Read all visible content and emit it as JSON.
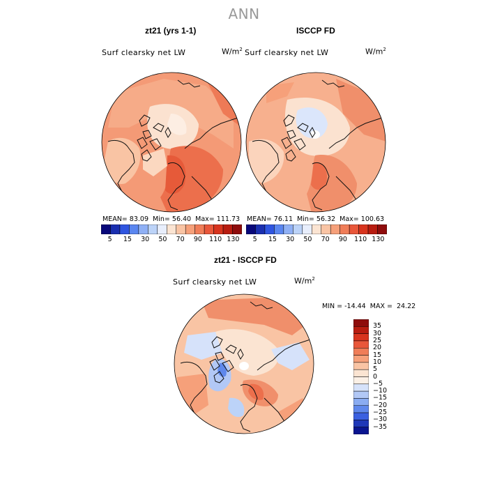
{
  "title": "ANN",
  "panels": [
    {
      "title": "zt21 (yrs 1-1)",
      "variable": "Surf clearsky net LW",
      "units_base": "W/m",
      "units_exp": "2",
      "stats": {
        "mean_label": "MEAN=",
        "mean": "83.09",
        "min_label": "Min=",
        "min": "56.40",
        "max_label": "Max=",
        "max": "111.73"
      }
    },
    {
      "title": "ISCCP FD",
      "variable": "Surf clearsky net LW",
      "units_base": "W/m",
      "units_exp": "2",
      "stats": {
        "mean_label": "MEAN=",
        "mean": "76.11",
        "min_label": "Min=",
        "min": "56.32",
        "max_label": "Max=",
        "max": "100.63"
      }
    }
  ],
  "colorbar_top": {
    "tick_labels": [
      "5",
      "15",
      "30",
      "50",
      "70",
      "90",
      "110",
      "130"
    ],
    "colors": [
      "#08087a",
      "#1a2fb0",
      "#2f55e0",
      "#5a86f0",
      "#8fb0f5",
      "#bcd3f8",
      "#e8eefc",
      "#fbe4d2",
      "#f9c4a4",
      "#f6a07a",
      "#f07d58",
      "#e9573a",
      "#d8341e",
      "#b81c10",
      "#8e0c0c"
    ]
  },
  "diff_panel": {
    "title": "zt21 - ISCCP FD",
    "variable": "Surf clearsky net LW",
    "units_base": "W/m",
    "units_exp": "2",
    "minmax": "MIN = -14.44  MAX =  24.22"
  },
  "colorbar_diff": {
    "labels": [
      "35",
      "30",
      "25",
      "20",
      "15",
      "10",
      "5",
      "0",
      "-5",
      "-10",
      "-15",
      "-20",
      "-25",
      "-30",
      "-35"
    ],
    "colors": [
      "#8e0c0c",
      "#b81c10",
      "#d8341e",
      "#e9573a",
      "#f07d58",
      "#f6a07a",
      "#f9c4a4",
      "#fbe4d2",
      "#fbf0e6",
      "#d6e2fa",
      "#b2c8f6",
      "#8aacf2",
      "#5f88ec",
      "#3a60e0",
      "#1f38b8",
      "#0a1590"
    ]
  }
}
